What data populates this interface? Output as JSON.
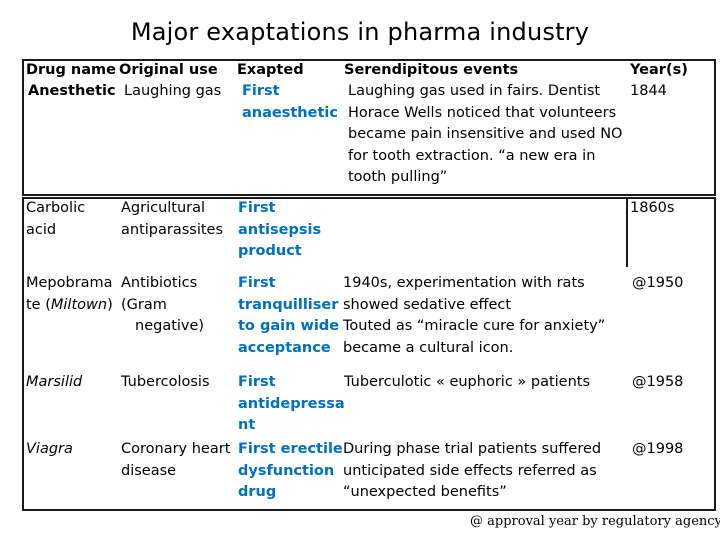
{
  "title": "Major exaptations in pharma industry",
  "headers": [
    "Drug name",
    "Original use",
    "Exapted",
    "Serendipitous events",
    "Year(s)"
  ],
  "rows": [
    {
      "drug": [
        "Anesthetic"
      ],
      "original": [
        "Laughing gas"
      ],
      "exapted": [
        "First",
        "anaesthetic"
      ],
      "events": [
        "Laughing gas used in fairs. Dentist",
        "Horace Wells noticed that volunteers",
        "became pain insensitive and used NO",
        "for tooth extraction. “a new era in",
        "tooth pulling”"
      ],
      "year": [
        "1844"
      ]
    },
    {
      "drug": [
        "Carbolic",
        "acid"
      ],
      "original": [
        "Agricultural",
        "antiparassites"
      ],
      "exapted": [
        "First",
        "antisepsis",
        "product"
      ],
      "events": [],
      "year": [
        "1860s"
      ]
    },
    {
      "drug": [
        "Mepobrama",
        "te (",
        "Miltown",
        ")"
      ],
      "original": [
        "Antibiotics",
        "(Gram",
        "negative)"
      ],
      "exapted": [
        "First",
        "tranquilliser",
        "to gain wide",
        "acceptance"
      ],
      "events": [
        "1940s, experimentation with rats",
        "showed sedative effect",
        "Touted as “miracle cure for anxiety”",
        "became a cultural icon."
      ],
      "year": [
        "@1950"
      ]
    },
    {
      "drug": [
        "Marsilid"
      ],
      "original": [
        "Tubercolosis"
      ],
      "exapted": [
        "First",
        "antidepressa",
        "nt"
      ],
      "events": [
        "Tuberculotic « euphoric » patients"
      ],
      "year": [
        "@1958"
      ]
    },
    {
      "drug": [
        "Viagra"
      ],
      "original": [
        "Coronary heart",
        "disease"
      ],
      "exapted": [
        "First erectile",
        "dysfunction",
        "drug"
      ],
      "events": [
        "During phase trial patients suffered",
        "unticipated side effects referred as",
        "“unexpected benefits”"
      ],
      "year": [
        "@1998"
      ]
    }
  ],
  "footnote": "@ approval year by regulatory agency",
  "colors": {
    "exapted": "#0070c0",
    "border": "#1a1a1a"
  }
}
